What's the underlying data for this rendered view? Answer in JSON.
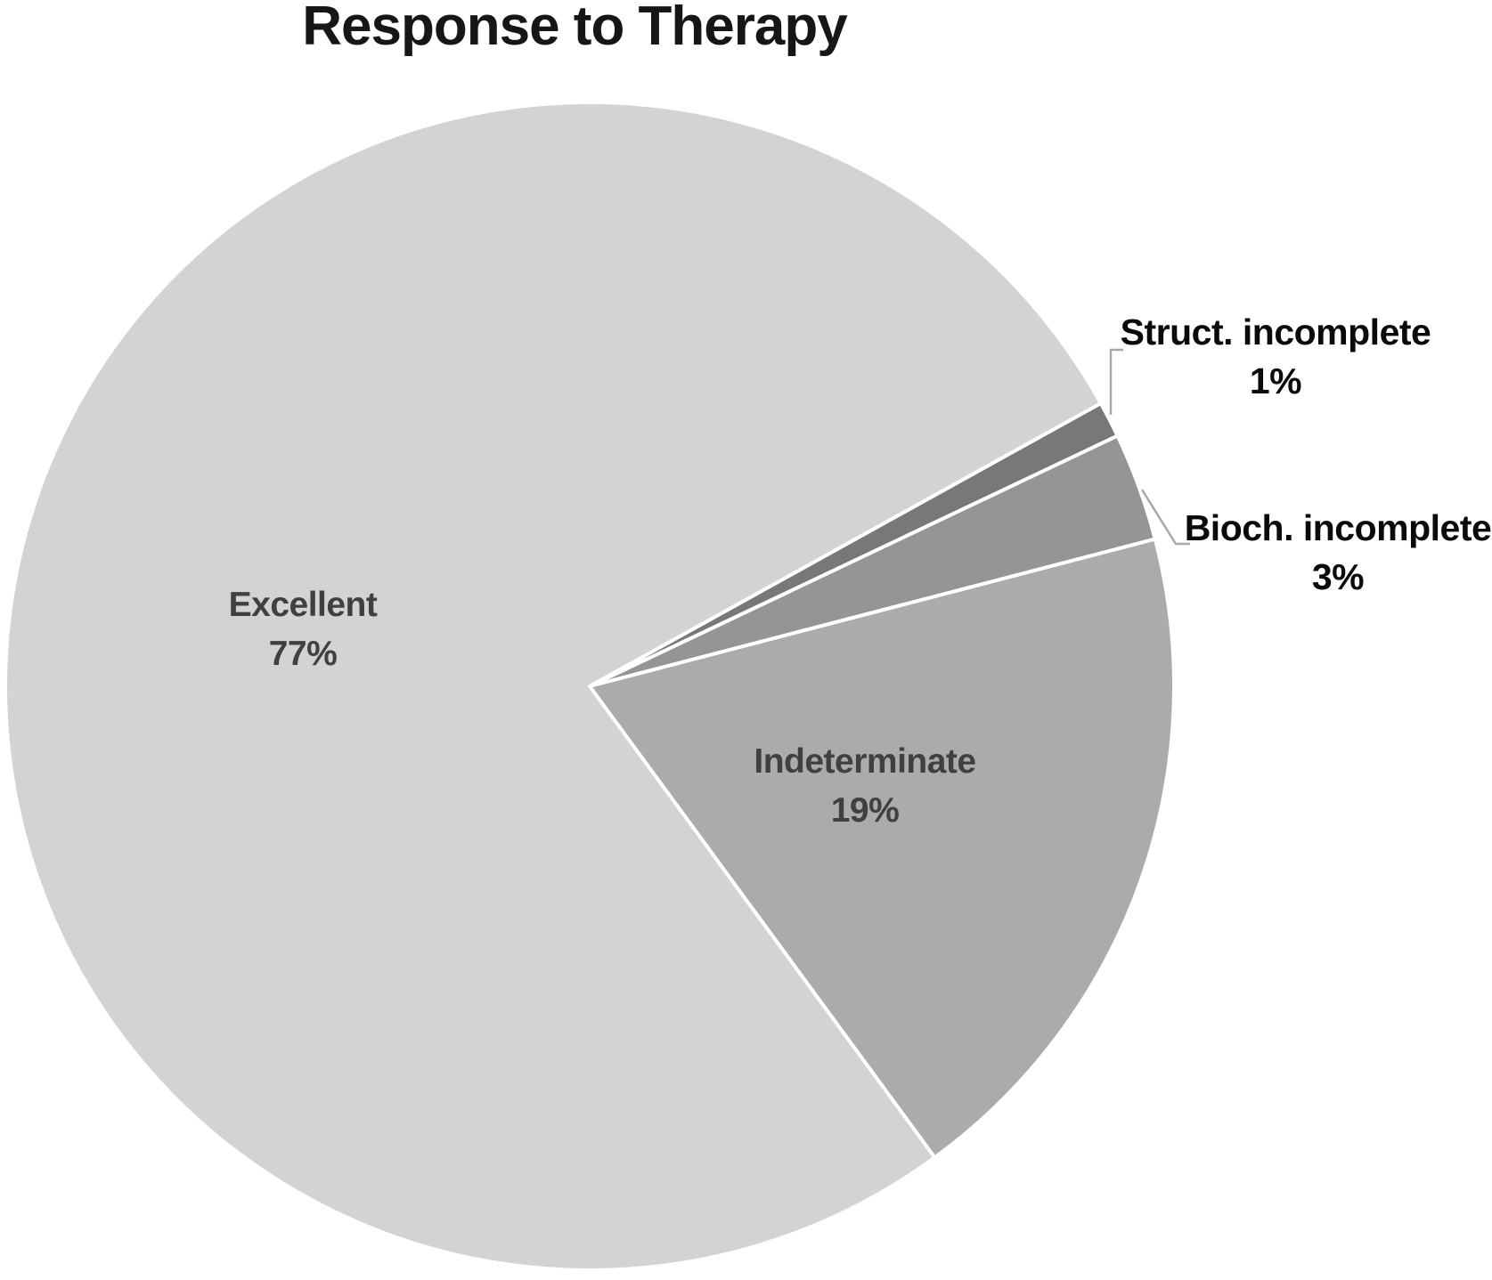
{
  "title": "Response to Therapy",
  "chart_data": {
    "type": "pie",
    "title": "Response to Therapy",
    "rotation_deg_clockwise_from_top": 61,
    "slices": [
      {
        "label": "Struct. incomplete",
        "value_pct": 1,
        "display": "1%",
        "color": "#787878",
        "label_placement": "outside-right"
      },
      {
        "label": "Bioch. incomplete",
        "value_pct": 3,
        "display": "3%",
        "color": "#959595",
        "label_placement": "outside-right"
      },
      {
        "label": "Indeterminate",
        "value_pct": 19,
        "display": "19%",
        "color": "#ababab",
        "label_placement": "inside"
      },
      {
        "label": "Excellent",
        "value_pct": 77,
        "display": "77%",
        "color": "#d3d3d3",
        "label_placement": "inside"
      }
    ],
    "slice_border_color": "#ffffff",
    "leader_line_color": "#a8a8a8",
    "background_color": "#ffffff",
    "legend": "none"
  }
}
